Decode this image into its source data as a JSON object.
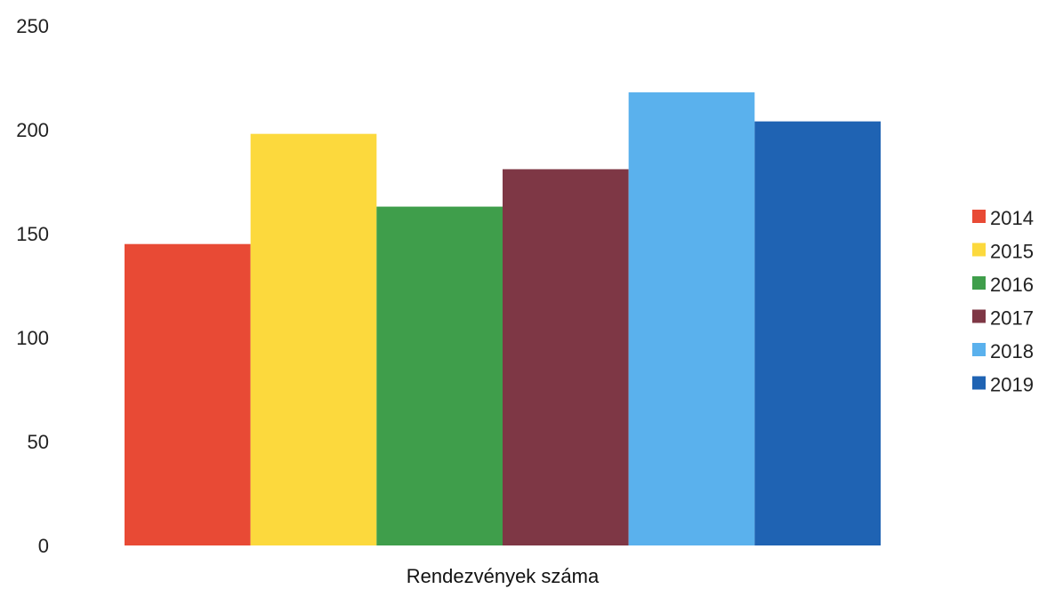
{
  "chart_data": {
    "type": "bar",
    "title": "",
    "xlabel": "",
    "ylabel": "",
    "categories": [
      "Rendezvények száma"
    ],
    "series": [
      {
        "name": "2014",
        "values": [
          145
        ],
        "color": "#e84a35"
      },
      {
        "name": "2015",
        "values": [
          198
        ],
        "color": "#fcd93d"
      },
      {
        "name": "2016",
        "values": [
          163
        ],
        "color": "#3f9e4b"
      },
      {
        "name": "2017",
        "values": [
          181
        ],
        "color": "#7e3745"
      },
      {
        "name": "2018",
        "values": [
          218
        ],
        "color": "#5ab1ed"
      },
      {
        "name": "2019",
        "values": [
          204
        ],
        "color": "#1f63b3"
      }
    ],
    "ylim": [
      0,
      250
    ],
    "yticks": [
      "0",
      "50",
      "100",
      "150",
      "200",
      "250"
    ],
    "grid": false,
    "legend_position": "right"
  }
}
